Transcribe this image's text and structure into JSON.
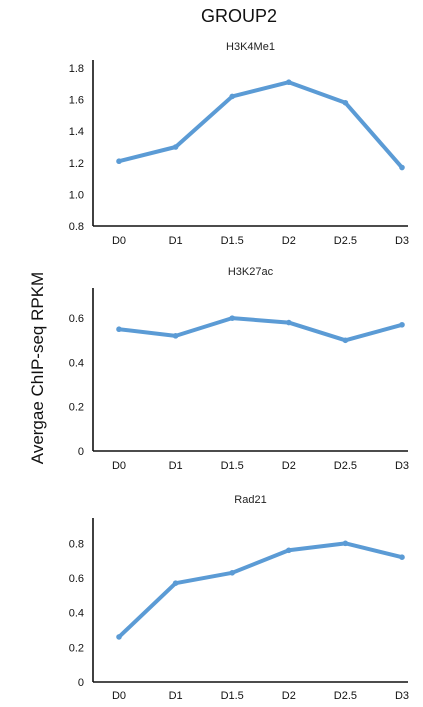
{
  "figure": {
    "title": "GROUP2",
    "ylabel": "Avergae ChIP-seq RPKM"
  },
  "colors": {
    "series": "#5b9bd5",
    "axis": "#111111"
  },
  "chart_data": [
    {
      "type": "line",
      "title": "H3K4Me1",
      "xlabel": "",
      "ylabel": "Avergae ChIP-seq RPKM",
      "categories": [
        "D0",
        "D1",
        "D1.5",
        "D2",
        "D2.5",
        "D3"
      ],
      "ylim": [
        0.8,
        1.8
      ],
      "yticks": [
        "0.8",
        "1.0",
        "1.2",
        "1.4",
        "1.6",
        "1.8"
      ],
      "series": [
        {
          "values": [
            1.21,
            1.3,
            1.62,
            1.71,
            1.58,
            1.17
          ]
        }
      ],
      "grid": false
    },
    {
      "type": "line",
      "title": "H3K27ac",
      "xlabel": "",
      "ylabel": "Avergae ChIP-seq RPKM",
      "categories": [
        "D0",
        "D1",
        "D1.5",
        "D2",
        "D2.5",
        "D3"
      ],
      "ylim": [
        0,
        0.7
      ],
      "yticks": [
        "0",
        "0.2",
        "0.4",
        "0.6"
      ],
      "series": [
        {
          "values": [
            0.55,
            0.52,
            0.6,
            0.58,
            0.5,
            0.57
          ]
        }
      ],
      "grid": false
    },
    {
      "type": "line",
      "title": "Rad21",
      "xlabel": "",
      "ylabel": "Avergae ChIP-seq RPKM",
      "categories": [
        "D0",
        "D1",
        "D1.5",
        "D2",
        "D2.5",
        "D3"
      ],
      "ylim": [
        0,
        0.9
      ],
      "yticks": [
        "0",
        "0.2",
        "0.4",
        "0.6",
        "0.8"
      ],
      "series": [
        {
          "values": [
            0.26,
            0.57,
            0.63,
            0.76,
            0.8,
            0.72
          ]
        }
      ],
      "grid": false
    }
  ]
}
